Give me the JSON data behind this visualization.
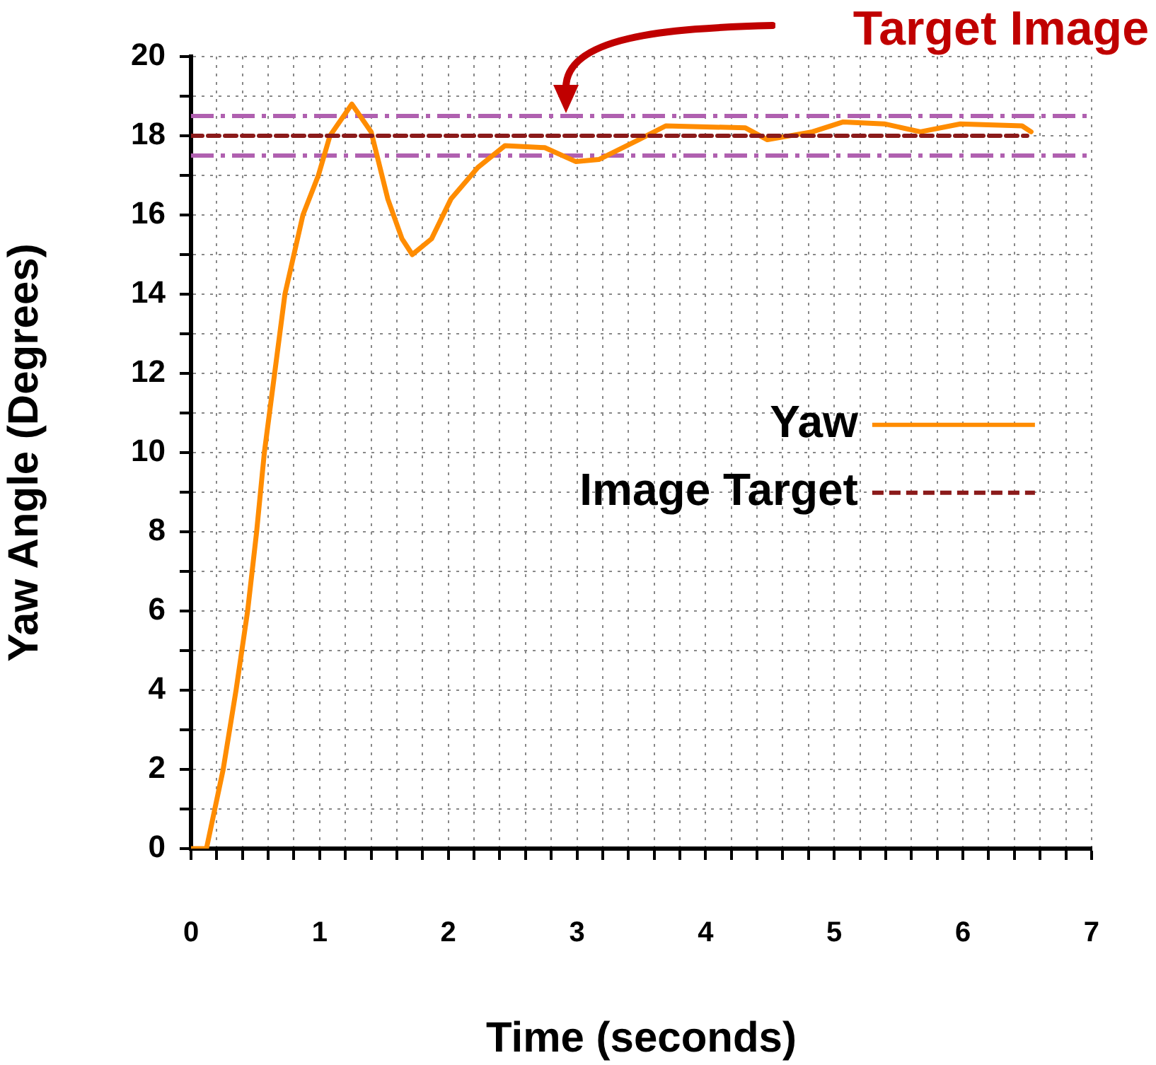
{
  "chart_data": {
    "type": "line",
    "xlabel": "Time (seconds)",
    "ylabel": "Yaw Angle (Degrees)",
    "xlim": [
      0,
      7
    ],
    "ylim": [
      0,
      20
    ],
    "xticks": [
      0,
      {
        "value": 0.2,
        "label": null
      },
      {
        "value": 0.4,
        "label": null
      },
      {
        "value": 0.6,
        "label": null
      },
      {
        "value": 0.8,
        "label": null
      },
      1,
      {
        "value": 1.2,
        "label": null
      },
      {
        "value": 1.4,
        "label": null
      },
      {
        "value": 1.6,
        "label": null
      },
      {
        "value": 1.8,
        "label": null
      },
      2,
      {
        "value": 2.2,
        "label": null
      },
      {
        "value": 2.4,
        "label": null
      },
      {
        "value": 2.6,
        "label": null
      },
      {
        "value": 2.8,
        "label": null
      },
      3,
      {
        "value": 3.2,
        "label": null
      },
      {
        "value": 3.4,
        "label": null
      },
      {
        "value": 3.6,
        "label": null
      },
      {
        "value": 3.8,
        "label": null
      },
      4,
      {
        "value": 4.2,
        "label": null
      },
      {
        "value": 4.4,
        "label": null
      },
      {
        "value": 4.6,
        "label": null
      },
      {
        "value": 4.8,
        "label": null
      },
      5,
      {
        "value": 5.2,
        "label": null
      },
      {
        "value": 5.4,
        "label": null
      },
      {
        "value": 5.6,
        "label": null
      },
      {
        "value": 5.8,
        "label": null
      },
      6,
      {
        "value": 6.2,
        "label": null
      },
      {
        "value": 6.4,
        "label": null
      },
      {
        "value": 6.6,
        "label": null
      },
      {
        "value": 6.8,
        "label": null
      },
      7
    ],
    "yticks": [
      0,
      {
        "value": 1,
        "label": null
      },
      2,
      {
        "value": 3,
        "label": null
      },
      4,
      {
        "value": 5,
        "label": null
      },
      6,
      {
        "value": 7,
        "label": null
      },
      8,
      {
        "value": 9,
        "label": null
      },
      10,
      {
        "value": 11,
        "label": null
      },
      12,
      {
        "value": 13,
        "label": null
      },
      14,
      {
        "value": 15,
        "label": null
      },
      16,
      {
        "value": 17,
        "label": null
      },
      18,
      {
        "value": 19,
        "label": null
      },
      20
    ],
    "grid": true,
    "legend": "right",
    "marker": "none",
    "series": [
      {
        "name": "Yaw",
        "color": "#ff8c00",
        "line_style": "solid",
        "x": [
          0,
          0.12,
          0.25,
          0.35,
          0.44,
          0.51,
          0.57,
          0.65,
          0.73,
          0.87,
          0.99,
          1.08,
          1.25,
          1.4,
          1.53,
          1.64,
          1.72,
          1.87,
          2.02,
          2.23,
          2.44,
          2.75,
          2.99,
          3.17,
          3.48,
          3.69,
          4.31,
          4.48,
          4.83,
          5.07,
          5.39,
          5.67,
          5.98,
          6.46,
          6.53
        ],
        "values": [
          0,
          0,
          2,
          4,
          6,
          8,
          10,
          12,
          14,
          16,
          17,
          18,
          18.8,
          18.1,
          16.4,
          15.4,
          15,
          15.4,
          16.4,
          17.2,
          17.75,
          17.7,
          17.35,
          17.4,
          17.9,
          18.25,
          18.2,
          17.9,
          18.1,
          18.35,
          18.3,
          18.1,
          18.3,
          18.25,
          18.1
        ]
      },
      {
        "name": "Image Target",
        "color": "#8b1a1a",
        "line_style": "dashed",
        "x": [
          0,
          6.5
        ],
        "values": [
          18,
          18
        ]
      }
    ],
    "ref_lines": [
      {
        "axis": "y",
        "value": 18.5,
        "color": "#b060b0",
        "line_style": "dashed"
      },
      {
        "axis": "y",
        "value": 17.5,
        "color": "#b060b0",
        "line_style": "dashed"
      }
    ],
    "annotations": [
      "Target Image"
    ]
  }
}
